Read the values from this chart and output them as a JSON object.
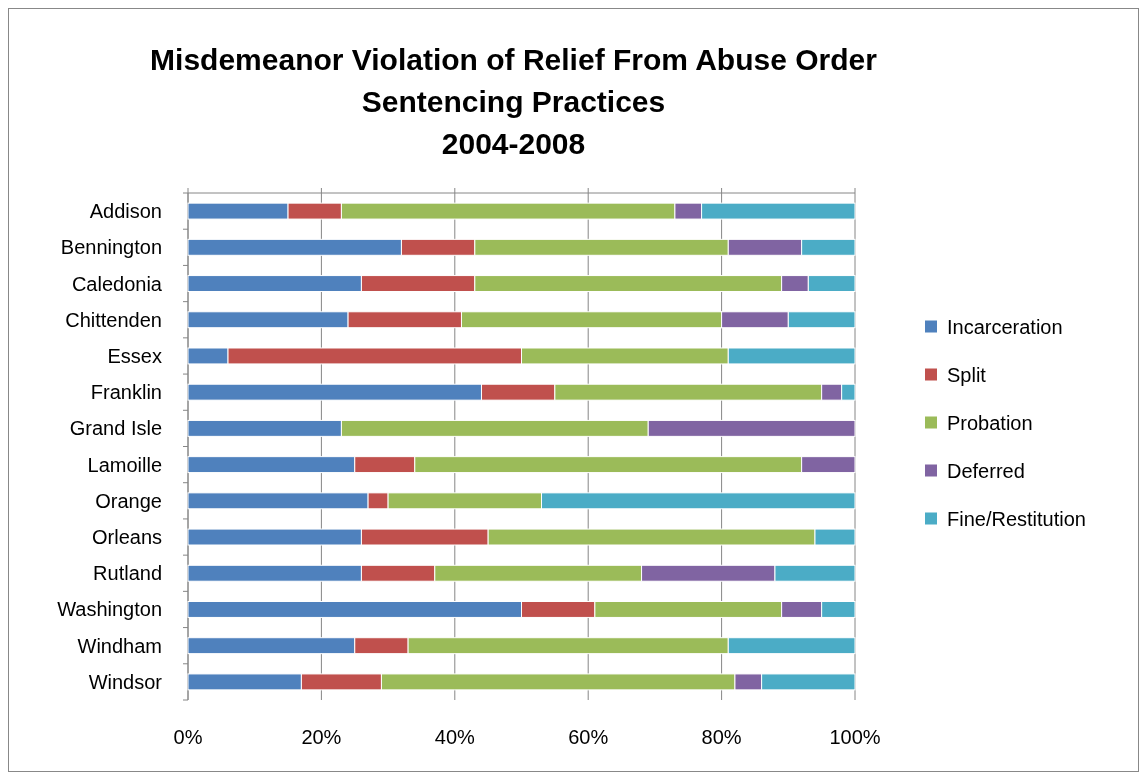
{
  "chart_data": {
    "type": "bar",
    "orientation": "horizontal",
    "stacked": true,
    "title": "Misdemeanor Violation of Relief From Abuse Order\nSentencing Practices\n2004-2008",
    "categories": [
      "Addison",
      "Bennington",
      "Caledonia",
      "Chittenden",
      "Essex",
      "Franklin",
      "Grand Isle",
      "Lamoille",
      "Orange",
      "Orleans",
      "Rutland",
      "Washington",
      "Windham",
      "Windsor"
    ],
    "series": [
      {
        "name": "Incarceration",
        "color": "#4f81bd",
        "values": [
          15,
          32,
          26,
          24,
          6,
          44,
          23,
          25,
          27,
          26,
          26,
          50,
          25,
          17
        ]
      },
      {
        "name": "Split",
        "color": "#c0504d",
        "values": [
          8,
          11,
          17,
          17,
          44,
          11,
          0,
          9,
          3,
          19,
          11,
          11,
          8,
          12
        ]
      },
      {
        "name": "Probation",
        "color": "#9bbb59",
        "values": [
          50,
          38,
          46,
          39,
          31,
          40,
          46,
          58,
          23,
          49,
          31,
          28,
          48,
          53
        ]
      },
      {
        "name": "Deferred",
        "color": "#8064a2",
        "values": [
          4,
          11,
          4,
          10,
          0,
          3,
          31,
          8,
          0,
          0,
          20,
          6,
          0,
          4
        ]
      },
      {
        "name": "Fine/Restitution",
        "color": "#4bacc6",
        "values": [
          23,
          8,
          7,
          10,
          19,
          2,
          0,
          0,
          47,
          6,
          12,
          5,
          19,
          14
        ]
      }
    ],
    "xlim": [
      0,
      100
    ],
    "xticks": [
      {
        "value": 0,
        "label": "0%"
      },
      {
        "value": 20,
        "label": "20%"
      },
      {
        "value": 40,
        "label": "40%"
      },
      {
        "value": 60,
        "label": "60%"
      },
      {
        "value": 80,
        "label": "80%"
      },
      {
        "value": 100,
        "label": "100%"
      }
    ],
    "grid": "x",
    "legend": "right"
  }
}
